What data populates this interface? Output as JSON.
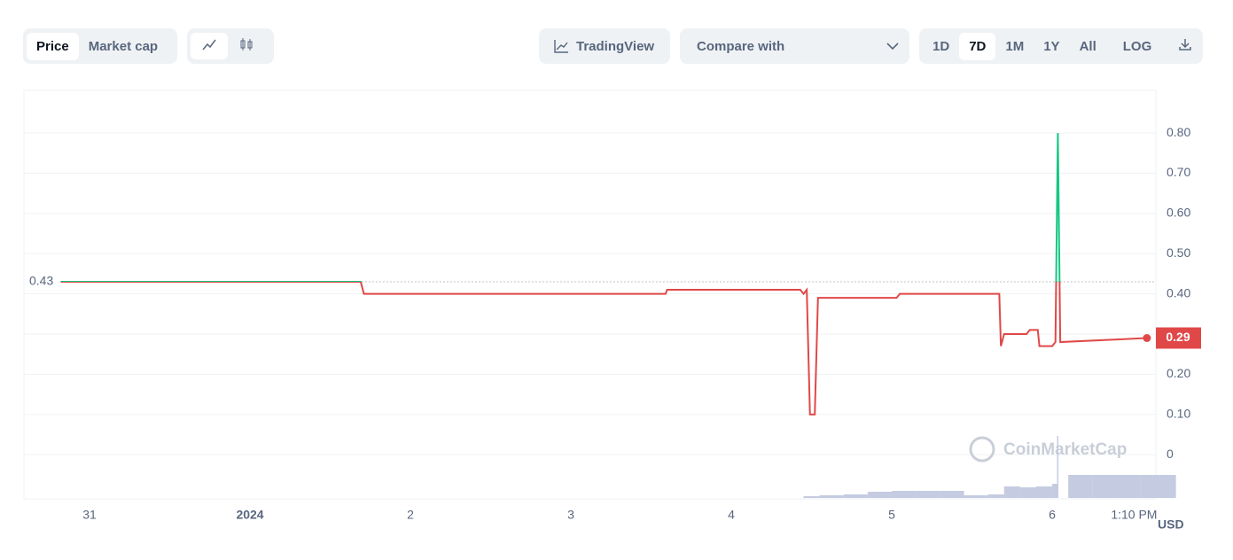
{
  "toolbar": {
    "price": "Price",
    "market_cap": "Market cap",
    "trading_view": "TradingView",
    "compare": "Compare with",
    "ranges": [
      "1D",
      "7D",
      "1M",
      "1Y",
      "All"
    ],
    "log": "LOG"
  },
  "chart_data": {
    "type": "line",
    "x": [
      -0.18,
      1.69,
      1.71,
      3.59,
      3.6,
      4.43,
      4.45,
      4.47,
      4.49,
      4.52,
      4.54,
      5.03,
      5.05,
      5.67,
      5.68,
      5.7,
      5.84,
      5.86,
      5.91,
      5.92,
      6.0,
      6.02,
      6.035,
      6.05,
      6.59
    ],
    "series": [
      {
        "name": "Price",
        "color": "#e04848",
        "up_color": "#16c784",
        "values": [
          0.43,
          0.43,
          0.4,
          0.4,
          0.41,
          0.41,
          0.4,
          0.41,
          0.1,
          0.1,
          0.39,
          0.39,
          0.4,
          0.4,
          0.27,
          0.3,
          0.3,
          0.31,
          0.31,
          0.27,
          0.27,
          0.28,
          0.8,
          0.28,
          0.29
        ]
      }
    ],
    "baseline": 0.43,
    "baseline_label": "0.43",
    "current": 0.29,
    "current_label": "0.29",
    "xlim": [
      -0.409,
      6.646
    ],
    "xticks": [
      {
        "value": 0,
        "label": "31"
      },
      {
        "value": 1,
        "label": "2024"
      },
      2,
      3,
      4,
      5,
      6,
      {
        "value": 6.51,
        "label": "1:10 PM"
      }
    ],
    "ylim": [
      -0.11,
      0.906
    ],
    "yticks": [
      0,
      {
        "value": 0.1,
        "label": "0.10"
      },
      {
        "value": 0.2,
        "label": "0.20"
      },
      {
        "value": 0.3,
        "label": "0.30"
      },
      {
        "value": 0.4,
        "label": "0.40"
      },
      {
        "value": 0.5,
        "label": "0.50"
      },
      {
        "value": 0.6,
        "label": "0.60"
      },
      {
        "value": 0.7,
        "label": "0.70"
      },
      {
        "value": 0.8,
        "label": "0.80"
      }
    ],
    "grid": true,
    "currency": "USD",
    "watermark": "CoinMarketCap",
    "volume": {
      "x": [
        4.45,
        4.55,
        4.7,
        4.85,
        5.0,
        5.15,
        5.3,
        5.45,
        5.6,
        5.7,
        5.8,
        5.9,
        6.0,
        6.03,
        6.1,
        6.25,
        6.4,
        6.55
      ],
      "values": [
        2,
        3,
        4,
        7,
        8,
        8,
        8,
        3,
        4,
        13,
        12,
        13,
        16,
        70,
        26,
        26,
        26,
        26
      ],
      "color": "#c5cbe0"
    }
  }
}
